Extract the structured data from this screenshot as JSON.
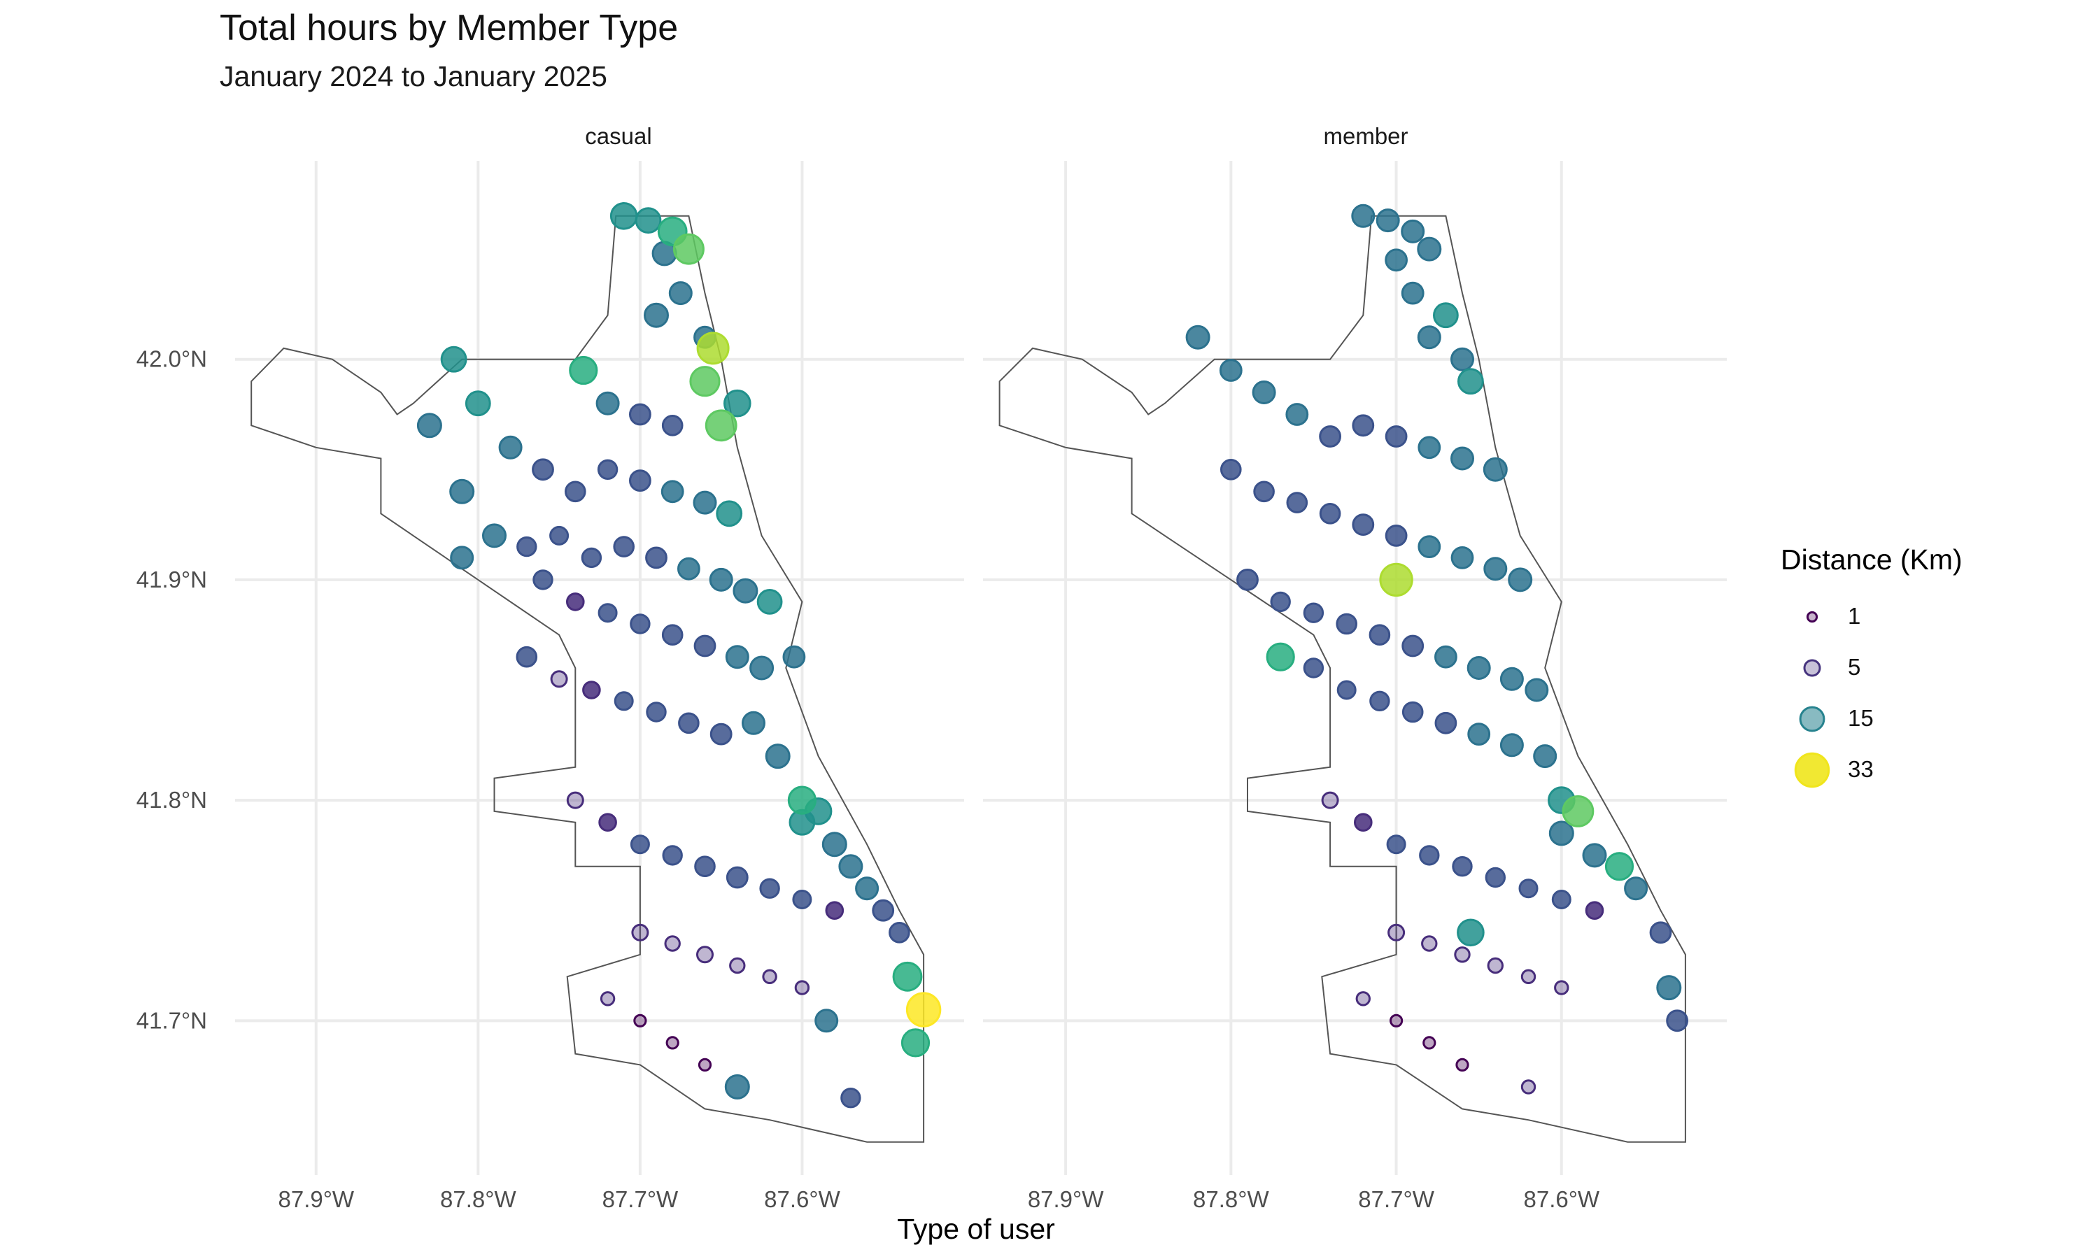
{
  "chart_data": {
    "type": "scatter",
    "title": "Total hours by Member Type",
    "subtitle": "January 2024 to January 2025",
    "xlabel": "Type of user",
    "ylabel": "",
    "facets": [
      "casual",
      "member"
    ],
    "x_ticks": [
      "87.9°W",
      "87.8°W",
      "87.7°W",
      "87.6°W"
    ],
    "y_ticks": [
      "41.7°N",
      "41.8°N",
      "41.9°N",
      "42.0°N"
    ],
    "x_tick_values": [
      -87.9,
      -87.8,
      -87.7,
      -87.6
    ],
    "y_tick_values": [
      41.7,
      41.8,
      41.9,
      42.0
    ],
    "xlim": [
      -87.95,
      -87.5
    ],
    "ylim": [
      41.63,
      42.09
    ],
    "grid": true,
    "legend": {
      "title": "Distance (Km)",
      "placement": "right",
      "entries": [
        {
          "label": "1",
          "value": 1,
          "color": "#440154"
        },
        {
          "label": "5",
          "value": 5,
          "color": "#46337e"
        },
        {
          "label": "15",
          "value": 15,
          "color": "#26828e"
        },
        {
          "label": "33",
          "value": 33,
          "color": "#f0e51c"
        }
      ]
    },
    "color_scale": [
      "#440154",
      "#472d7b",
      "#3b528b",
      "#2c728e",
      "#21918c",
      "#28ae80",
      "#5ec962",
      "#addc30",
      "#fde725"
    ],
    "series": [
      {
        "facet": "casual",
        "points_note_excluded": true,
        "points": [
          [
            -87.71,
            42.065,
            18
          ],
          [
            -87.695,
            42.063,
            16
          ],
          [
            -87.68,
            42.058,
            22
          ],
          [
            -87.67,
            42.05,
            25
          ],
          [
            -87.685,
            42.048,
            14
          ],
          [
            -87.675,
            42.03,
            12
          ],
          [
            -87.69,
            42.02,
            14
          ],
          [
            -87.66,
            42.01,
            11
          ],
          [
            -87.655,
            42.005,
            28
          ],
          [
            -87.66,
            41.99,
            24
          ],
          [
            -87.735,
            41.995,
            20
          ],
          [
            -87.72,
            41.98,
            12
          ],
          [
            -87.7,
            41.975,
            10
          ],
          [
            -87.68,
            41.97,
            9
          ],
          [
            -87.65,
            41.97,
            26
          ],
          [
            -87.64,
            41.98,
            18
          ],
          [
            -87.815,
            42.0,
            16
          ],
          [
            -87.8,
            41.98,
            15
          ],
          [
            -87.83,
            41.97,
            14
          ],
          [
            -87.78,
            41.96,
            12
          ],
          [
            -87.76,
            41.95,
            10
          ],
          [
            -87.74,
            41.94,
            9
          ],
          [
            -87.72,
            41.95,
            8
          ],
          [
            -87.7,
            41.945,
            10
          ],
          [
            -87.68,
            41.94,
            11
          ],
          [
            -87.66,
            41.935,
            12
          ],
          [
            -87.645,
            41.93,
            16
          ],
          [
            -87.81,
            41.94,
            14
          ],
          [
            -87.79,
            41.92,
            13
          ],
          [
            -87.77,
            41.915,
            8
          ],
          [
            -87.75,
            41.92,
            7
          ],
          [
            -87.73,
            41.91,
            8
          ],
          [
            -87.71,
            41.915,
            9
          ],
          [
            -87.69,
            41.91,
            10
          ],
          [
            -87.67,
            41.905,
            11
          ],
          [
            -87.65,
            41.9,
            12
          ],
          [
            -87.635,
            41.895,
            14
          ],
          [
            -87.62,
            41.89,
            15
          ],
          [
            -87.81,
            41.91,
            12
          ],
          [
            -87.76,
            41.9,
            8
          ],
          [
            -87.74,
            41.89,
            6
          ],
          [
            -87.72,
            41.885,
            7
          ],
          [
            -87.7,
            41.88,
            8
          ],
          [
            -87.68,
            41.875,
            9
          ],
          [
            -87.66,
            41.87,
            10
          ],
          [
            -87.64,
            41.865,
            12
          ],
          [
            -87.625,
            41.86,
            13
          ],
          [
            -87.605,
            41.865,
            11
          ],
          [
            -87.77,
            41.865,
            9
          ],
          [
            -87.75,
            41.855,
            5
          ],
          [
            -87.73,
            41.85,
            6
          ],
          [
            -87.71,
            41.845,
            7
          ],
          [
            -87.69,
            41.84,
            8
          ],
          [
            -87.67,
            41.835,
            9
          ],
          [
            -87.65,
            41.83,
            10
          ],
          [
            -87.63,
            41.835,
            12
          ],
          [
            -87.615,
            41.82,
            14
          ],
          [
            -87.6,
            41.8,
            20
          ],
          [
            -87.59,
            41.795,
            18
          ],
          [
            -87.6,
            41.79,
            16
          ],
          [
            -87.58,
            41.78,
            14
          ],
          [
            -87.57,
            41.77,
            13
          ],
          [
            -87.56,
            41.76,
            12
          ],
          [
            -87.55,
            41.75,
            10
          ],
          [
            -87.54,
            41.74,
            9
          ],
          [
            -87.535,
            41.72,
            22
          ],
          [
            -87.525,
            41.705,
            33
          ],
          [
            -87.53,
            41.69,
            20
          ],
          [
            -87.64,
            41.67,
            14
          ],
          [
            -87.585,
            41.7,
            12
          ],
          [
            -87.57,
            41.665,
            8
          ],
          [
            -87.74,
            41.8,
            5
          ],
          [
            -87.72,
            41.79,
            6
          ],
          [
            -87.7,
            41.78,
            7
          ],
          [
            -87.68,
            41.775,
            8
          ],
          [
            -87.66,
            41.77,
            9
          ],
          [
            -87.64,
            41.765,
            10
          ],
          [
            -87.62,
            41.76,
            8
          ],
          [
            -87.6,
            41.755,
            7
          ],
          [
            -87.58,
            41.75,
            6
          ],
          [
            -87.7,
            41.74,
            5
          ],
          [
            -87.68,
            41.735,
            4
          ],
          [
            -87.66,
            41.73,
            5
          ],
          [
            -87.64,
            41.725,
            4
          ],
          [
            -87.62,
            41.72,
            3
          ],
          [
            -87.6,
            41.715,
            3
          ],
          [
            -87.72,
            41.71,
            3
          ],
          [
            -87.7,
            41.7,
            2
          ],
          [
            -87.68,
            41.69,
            2
          ],
          [
            -87.66,
            41.68,
            2
          ]
        ]
      },
      {
        "facet": "member",
        "points_note_excluded": true,
        "points": [
          [
            -87.72,
            42.065,
            12
          ],
          [
            -87.705,
            42.063,
            12
          ],
          [
            -87.69,
            42.058,
            12
          ],
          [
            -87.68,
            42.05,
            13
          ],
          [
            -87.7,
            42.045,
            11
          ],
          [
            -87.69,
            42.03,
            11
          ],
          [
            -87.67,
            42.02,
            15
          ],
          [
            -87.68,
            42.01,
            12
          ],
          [
            -87.66,
            42.0,
            12
          ],
          [
            -87.655,
            41.99,
            16
          ],
          [
            -87.82,
            42.01,
            13
          ],
          [
            -87.8,
            41.995,
            11
          ],
          [
            -87.78,
            41.985,
            12
          ],
          [
            -87.76,
            41.975,
            11
          ],
          [
            -87.74,
            41.965,
            10
          ],
          [
            -87.72,
            41.97,
            10
          ],
          [
            -87.7,
            41.965,
            10
          ],
          [
            -87.68,
            41.96,
            11
          ],
          [
            -87.66,
            41.955,
            12
          ],
          [
            -87.64,
            41.95,
            13
          ],
          [
            -87.8,
            41.95,
            9
          ],
          [
            -87.78,
            41.94,
            9
          ],
          [
            -87.76,
            41.935,
            9
          ],
          [
            -87.74,
            41.93,
            9
          ],
          [
            -87.72,
            41.925,
            10
          ],
          [
            -87.7,
            41.92,
            10
          ],
          [
            -87.68,
            41.915,
            11
          ],
          [
            -87.66,
            41.91,
            11
          ],
          [
            -87.64,
            41.905,
            12
          ],
          [
            -87.625,
            41.9,
            13
          ],
          [
            -87.7,
            41.9,
            30
          ],
          [
            -87.79,
            41.9,
            10
          ],
          [
            -87.77,
            41.89,
            8
          ],
          [
            -87.75,
            41.885,
            8
          ],
          [
            -87.73,
            41.88,
            9
          ],
          [
            -87.71,
            41.875,
            9
          ],
          [
            -87.69,
            41.87,
            10
          ],
          [
            -87.67,
            41.865,
            11
          ],
          [
            -87.65,
            41.86,
            12
          ],
          [
            -87.63,
            41.855,
            12
          ],
          [
            -87.615,
            41.85,
            12
          ],
          [
            -87.77,
            41.865,
            20
          ],
          [
            -87.75,
            41.86,
            8
          ],
          [
            -87.73,
            41.85,
            7
          ],
          [
            -87.71,
            41.845,
            8
          ],
          [
            -87.69,
            41.84,
            9
          ],
          [
            -87.67,
            41.835,
            10
          ],
          [
            -87.65,
            41.83,
            11
          ],
          [
            -87.63,
            41.825,
            12
          ],
          [
            -87.61,
            41.82,
            12
          ],
          [
            -87.6,
            41.8,
            18
          ],
          [
            -87.59,
            41.795,
            26
          ],
          [
            -87.6,
            41.785,
            14
          ],
          [
            -87.58,
            41.775,
            13
          ],
          [
            -87.565,
            41.77,
            20
          ],
          [
            -87.555,
            41.76,
            12
          ],
          [
            -87.54,
            41.74,
            10
          ],
          [
            -87.535,
            41.715,
            14
          ],
          [
            -87.53,
            41.7,
            10
          ],
          [
            -87.655,
            41.74,
            18
          ],
          [
            -87.74,
            41.8,
            5
          ],
          [
            -87.72,
            41.79,
            6
          ],
          [
            -87.7,
            41.78,
            7
          ],
          [
            -87.68,
            41.775,
            8
          ],
          [
            -87.66,
            41.77,
            8
          ],
          [
            -87.64,
            41.765,
            8
          ],
          [
            -87.62,
            41.76,
            7
          ],
          [
            -87.6,
            41.755,
            7
          ],
          [
            -87.58,
            41.75,
            6
          ],
          [
            -87.7,
            41.74,
            5
          ],
          [
            -87.68,
            41.735,
            4
          ],
          [
            -87.66,
            41.73,
            4
          ],
          [
            -87.64,
            41.725,
            4
          ],
          [
            -87.62,
            41.72,
            3
          ],
          [
            -87.6,
            41.715,
            3
          ],
          [
            -87.72,
            41.71,
            3
          ],
          [
            -87.7,
            41.7,
            2
          ],
          [
            -87.68,
            41.69,
            2
          ],
          [
            -87.66,
            41.68,
            2
          ],
          [
            -87.62,
            41.67,
            3
          ]
        ]
      }
    ]
  }
}
